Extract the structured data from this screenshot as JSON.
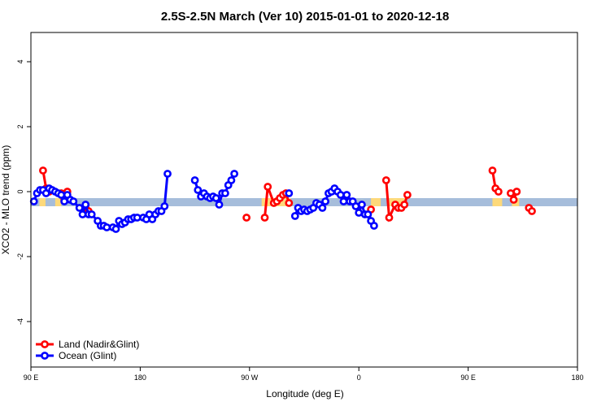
{
  "chart_data": {
    "type": "line",
    "title": "2.5S-2.5N March (Ver 10)   2015-01-01 to 2020-12-18",
    "xlabel": "Longitude (deg E)",
    "ylabel": "XCO2 - MLO trend (ppm)",
    "xlim": [
      90,
      540
    ],
    "ylim": [
      -5.4,
      4.9
    ],
    "x_ticks": [
      {
        "value": 90,
        "label": "90 E"
      },
      {
        "value": 180,
        "label": "180"
      },
      {
        "value": 270,
        "label": "90 W"
      },
      {
        "value": 360,
        "label": "0"
      },
      {
        "value": 450,
        "label": "90 E"
      },
      {
        "value": 540,
        "label": "180"
      }
    ],
    "y_ticks": [
      {
        "value": -4,
        "label": "-4"
      },
      {
        "value": -2,
        "label": "-2"
      },
      {
        "value": 0,
        "label": "0"
      },
      {
        "value": 2,
        "label": "2"
      },
      {
        "value": 4,
        "label": "4"
      }
    ],
    "band": {
      "y_min": -0.45,
      "y_max": -0.2,
      "color": "#a6bddb"
    },
    "land_patches": [
      {
        "x_min": 97,
        "x_max": 102
      },
      {
        "x_min": 110,
        "x_max": 115
      },
      {
        "x_min": 280,
        "x_max": 304
      },
      {
        "x_min": 370,
        "x_max": 378
      },
      {
        "x_min": 385,
        "x_max": 398
      },
      {
        "x_min": 470,
        "x_max": 478
      },
      {
        "x_min": 486,
        "x_max": 492
      }
    ],
    "land_patch_color": "#fdd97a",
    "legend": {
      "position": "bottom-left"
    },
    "series": [
      {
        "name": "Land (Nadir&Glint)",
        "color": "#ff0000",
        "segments": [
          [
            [
              100,
              0.65
            ],
            [
              102.5,
              0.1
            ],
            [
              105,
              0.0
            ]
          ],
          [
            [
              115,
              -0.05
            ],
            [
              117.5,
              -0.25
            ],
            [
              120,
              0.0
            ]
          ],
          [
            [
              135,
              -0.5
            ],
            [
              137.5,
              -0.6
            ]
          ],
          [
            [
              267.5,
              -0.8
            ]
          ],
          [
            [
              282.5,
              -0.8
            ],
            [
              285,
              0.15
            ],
            [
              290,
              -0.35
            ],
            [
              292.5,
              -0.3
            ],
            [
              295,
              -0.2
            ],
            [
              297.5,
              -0.1
            ],
            [
              300,
              -0.05
            ],
            [
              302.5,
              -0.35
            ]
          ],
          [
            [
              370,
              -0.55
            ]
          ],
          [
            [
              382.5,
              0.35
            ],
            [
              385,
              -0.8
            ],
            [
              390,
              -0.4
            ],
            [
              392.5,
              -0.5
            ],
            [
              395,
              -0.5
            ],
            [
              397.5,
              -0.4
            ],
            [
              400,
              -0.1
            ]
          ],
          [
            [
              470,
              0.65
            ],
            [
              472.5,
              0.1
            ],
            [
              475,
              0.0
            ]
          ],
          [
            [
              485,
              -0.05
            ],
            [
              487.5,
              -0.25
            ],
            [
              490,
              0.0
            ]
          ],
          [
            [
              500,
              -0.5
            ],
            [
              502.5,
              -0.6
            ]
          ]
        ]
      },
      {
        "name": "Ocean (Glint)",
        "color": "#0000ff",
        "segments": [
          [
            [
              92.5,
              -0.3
            ],
            [
              95,
              -0.05
            ],
            [
              97.5,
              0.05
            ],
            [
              100,
              0.05
            ],
            [
              102.5,
              -0.05
            ],
            [
              105,
              0.1
            ],
            [
              107.5,
              0.05
            ],
            [
              110,
              0.0
            ],
            [
              112.5,
              -0.05
            ],
            [
              115,
              -0.1
            ],
            [
              117.5,
              -0.3
            ],
            [
              120,
              -0.1
            ],
            [
              122.5,
              -0.25
            ],
            [
              125,
              -0.3
            ],
            [
              130,
              -0.5
            ],
            [
              132.5,
              -0.7
            ],
            [
              135,
              -0.4
            ],
            [
              137.5,
              -0.7
            ],
            [
              140,
              -0.7
            ],
            [
              145,
              -0.9
            ],
            [
              147.5,
              -1.05
            ],
            [
              150,
              -1.05
            ],
            [
              152.5,
              -1.1
            ],
            [
              157.5,
              -1.1
            ],
            [
              160,
              -1.15
            ],
            [
              162.5,
              -0.9
            ],
            [
              165,
              -1.0
            ],
            [
              167.5,
              -0.95
            ],
            [
              170,
              -0.85
            ],
            [
              172.5,
              -0.85
            ],
            [
              175,
              -0.8
            ],
            [
              177.5,
              -0.8
            ],
            [
              182.5,
              -0.8
            ],
            [
              185,
              -0.85
            ],
            [
              187.5,
              -0.7
            ],
            [
              190,
              -0.85
            ],
            [
              192.5,
              -0.7
            ],
            [
              195,
              -0.6
            ],
            [
              197.5,
              -0.6
            ],
            [
              200,
              -0.45
            ],
            [
              202.5,
              0.55
            ]
          ],
          [
            [
              225,
              0.35
            ],
            [
              227.5,
              0.05
            ],
            [
              230,
              -0.15
            ],
            [
              232.5,
              -0.05
            ],
            [
              235,
              -0.15
            ],
            [
              237.5,
              -0.2
            ],
            [
              240,
              -0.15
            ],
            [
              242.5,
              -0.2
            ],
            [
              245,
              -0.4
            ],
            [
              247.5,
              -0.05
            ],
            [
              250,
              -0.05
            ],
            [
              252.5,
              0.2
            ],
            [
              255,
              0.35
            ],
            [
              257.5,
              0.55
            ]
          ],
          [
            [
              302.5,
              -0.05
            ]
          ],
          [
            [
              307.5,
              -0.75
            ],
            [
              310,
              -0.5
            ],
            [
              312.5,
              -0.6
            ],
            [
              315,
              -0.55
            ],
            [
              317.5,
              -0.6
            ],
            [
              320,
              -0.55
            ],
            [
              322.5,
              -0.5
            ],
            [
              325,
              -0.35
            ],
            [
              327.5,
              -0.4
            ],
            [
              330,
              -0.5
            ],
            [
              332.5,
              -0.3
            ],
            [
              335,
              -0.05
            ],
            [
              337.5,
              0.0
            ],
            [
              340,
              0.1
            ],
            [
              342.5,
              0.0
            ],
            [
              345,
              -0.1
            ],
            [
              347.5,
              -0.3
            ],
            [
              350,
              -0.1
            ],
            [
              352.5,
              -0.3
            ],
            [
              355,
              -0.3
            ],
            [
              357.5,
              -0.45
            ],
            [
              360,
              -0.65
            ],
            [
              362.5,
              -0.4
            ],
            [
              365,
              -0.7
            ],
            [
              367.5,
              -0.7
            ],
            [
              370,
              -0.9
            ],
            [
              372.5,
              -1.05
            ]
          ]
        ]
      }
    ]
  }
}
